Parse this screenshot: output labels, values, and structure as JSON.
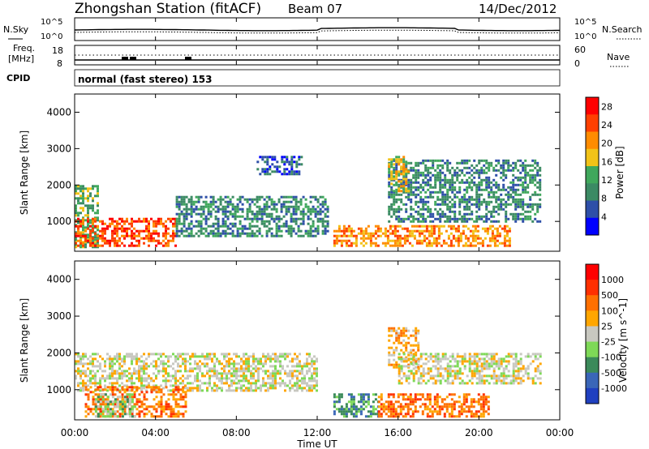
{
  "header": {
    "title": "Zhongshan Station (fitACF)",
    "beam": "Beam 07",
    "date": "14/Dec/2012"
  },
  "noise_panel": {
    "left_label": "N.Sky",
    "right_label": "N.Search",
    "left_ticks": [
      "10^5",
      "10^0"
    ],
    "right_ticks": [
      "10^5",
      "10^0"
    ]
  },
  "freq_panel": {
    "left_label_1": "Freq.",
    "left_label_2": "[MHz]",
    "left_ticks": [
      "18",
      "8"
    ],
    "right_label": "Nave",
    "right_ticks": [
      "60",
      "0"
    ]
  },
  "cpid": {
    "label": "CPID",
    "text": "normal (fast stereo) 153"
  },
  "time_axis": {
    "label": "Time UT",
    "ticks": [
      "00:00",
      "04:00",
      "08:00",
      "12:00",
      "16:00",
      "20:00",
      "00:00"
    ],
    "range_hours": [
      0,
      24
    ]
  },
  "colors": {
    "power": [
      "#0000ff",
      "#2e4fa8",
      "#3b8a64",
      "#40a85c",
      "#f2c318",
      "#ff8c00",
      "#ff4000",
      "#ff0000"
    ],
    "velocity": [
      "#2040c0",
      "#3a66b8",
      "#3b8a5a",
      "#7ed957",
      "#c8c8c0",
      "#ffa600",
      "#ff7000",
      "#ff3000",
      "#ff0000"
    ],
    "frame": "#000000"
  },
  "chart_data": [
    {
      "type": "heatmap",
      "title": "",
      "xlabel": "",
      "ylabel": "Slant Range [km]",
      "xlim": [
        0,
        24
      ],
      "ylim": [
        180,
        4500
      ],
      "yticks": [
        "1000",
        "2000",
        "3000",
        "4000"
      ],
      "colorbar": {
        "label": "Power [dB]",
        "ticks": [
          "4",
          "8",
          "12",
          "16",
          "20",
          "24",
          "28"
        ],
        "range": [
          0,
          30
        ]
      },
      "regions": [
        {
          "t": [
            0.0,
            1.2
          ],
          "r": [
            300,
            2000
          ],
          "level": 3
        },
        {
          "t": [
            0.0,
            5.0
          ],
          "r": [
            300,
            1100
          ],
          "level": 6
        },
        {
          "t": [
            5.0,
            12.5
          ],
          "r": [
            600,
            1700
          ],
          "level": 2
        },
        {
          "t": [
            9.0,
            11.2
          ],
          "r": [
            2300,
            2800
          ],
          "level": 1
        },
        {
          "t": [
            12.8,
            21.5
          ],
          "r": [
            300,
            900
          ],
          "level": 5
        },
        {
          "t": [
            15.5,
            23.0
          ],
          "r": [
            1000,
            2700
          ],
          "level": 2
        },
        {
          "t": [
            15.5,
            16.5
          ],
          "r": [
            1800,
            2800
          ],
          "level": 4
        }
      ]
    },
    {
      "type": "heatmap",
      "title": "",
      "xlabel": "Time UT",
      "ylabel": "Slant Range [km]",
      "xlim": [
        0,
        24
      ],
      "ylim": [
        180,
        4500
      ],
      "yticks": [
        "1000",
        "2000",
        "3000",
        "4000"
      ],
      "colorbar": {
        "label": "Velocity [m s^-1]",
        "ticks": [
          "1000",
          "500",
          "100",
          "25",
          "-25",
          "-100",
          "-500",
          "-1000"
        ],
        "range": [
          -1200,
          1200
        ]
      },
      "regions": [
        {
          "t": [
            0.0,
            12.0
          ],
          "r": [
            1000,
            2000
          ],
          "level": 4
        },
        {
          "t": [
            0.5,
            5.5
          ],
          "r": [
            300,
            1100
          ],
          "level": 6
        },
        {
          "t": [
            1.0,
            3.0
          ],
          "r": [
            300,
            900
          ],
          "level": 3
        },
        {
          "t": [
            12.8,
            15.0
          ],
          "r": [
            300,
            900
          ],
          "level": 2
        },
        {
          "t": [
            15.0,
            20.5
          ],
          "r": [
            300,
            900
          ],
          "level": 6
        },
        {
          "t": [
            15.5,
            17.0
          ],
          "r": [
            1600,
            2700
          ],
          "level": 5
        },
        {
          "t": [
            16.0,
            23.0
          ],
          "r": [
            1200,
            2000
          ],
          "level": 4
        }
      ]
    }
  ]
}
